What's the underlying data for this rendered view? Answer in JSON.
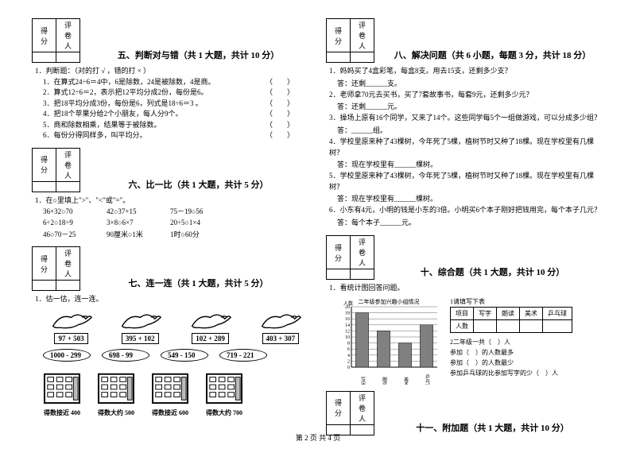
{
  "sections": {
    "five": {
      "title": "五、判断对与错（共 1 大题，共计 10 分）"
    },
    "six": {
      "title": "六、比一比（共 1 大题，共计 5 分）"
    },
    "seven": {
      "title": "七、连一连（共 1 大题，共计 5 分）"
    },
    "eight": {
      "title": "八、解决问题（共 6 小题，每题 3 分，共计 18 分）"
    },
    "ten": {
      "title": "十、综合题（共 1 大题，共计 10 分）"
    },
    "eleven": {
      "title": "十一、附加题（共 1 大题，共计 10 分）"
    }
  },
  "score_labels": {
    "score": "得分",
    "reviewer": "评卷人"
  },
  "q5": {
    "stem": "1．判断题：（对的打 √ ，错的打 × ）",
    "items": [
      "1．在算式24÷6＝4中，6是除数，24是被除数，4是商。",
      "2．算式12÷6＝2，表示把12平均分成2份，每份是6。",
      "3．把18平均分成3份，每份是6，列式是18÷6＝3 。",
      "4．把18个苹果分给2个小朋友，每人分9个。",
      "5．商和除数相乘，结果等于被除数。",
      "6．每份分得同样多，叫平均分。"
    ],
    "paren": "（　　）"
  },
  "q6": {
    "stem": "1．在○里填上\">\"、\"<\"或\"=\"。",
    "rows": [
      [
        "36+32○70",
        "42○37+15",
        "75－19○56"
      ],
      [
        "6÷2○18÷9",
        "3×8○6×7",
        "20÷5○1×4"
      ],
      [
        "46○70－25",
        "90厘米○1米",
        "1时○60分"
      ]
    ]
  },
  "q7": {
    "stem": "1．估一估，连一连。",
    "doves": [
      "97 + 503",
      "395 + 102",
      "102 + 289",
      "403 + 307"
    ],
    "ovals": [
      "1000 - 299",
      "698 - 99",
      "549 - 150",
      "719 - 221"
    ],
    "buildings": [
      "得数接近 400",
      "得数大约 500",
      "得数接近 600",
      "得数大约 700"
    ]
  },
  "q8": {
    "items": [
      {
        "q": "1．妈妈买了4盒彩笔，每盒8支。用去15支，还剩多少支？",
        "a": "答：还剩______支。"
      },
      {
        "q": "2．老师拿70元去买书，买了7套故事书，每套9元，还剩多少元？",
        "a": "答：还剩______元。"
      },
      {
        "q": "3．操场上原有16个同学，又来了14个。这些同学每5个一组做游戏，可以分成多少组？",
        "a": "答：______组。"
      },
      {
        "q": "4．学校里原来种了43棵树，今年死了5棵，植树节时又种了18棵。现在学校里有几棵树？",
        "a": "答：现在学校里有______棵树。"
      },
      {
        "q": "5．学校里原来种了43棵树，今年死了5棵，植树节时又种了18棵。现在学校里有几棵树？",
        "a": "答：现在学校里有______棵树。"
      },
      {
        "q": "6．小东有4元，小明的钱是小东的3倍。小明买6个本子刚好把钱用完，每个本子几元？",
        "a": "答：每个本子______元。"
      }
    ]
  },
  "q10": {
    "stem": "1．看统计图回答问题。",
    "chart_title": "二年级参加兴趣小组情况",
    "chart": {
      "ylabel": "人数",
      "ymax": 20,
      "ystep": 2,
      "categories": [
        "写字",
        "朗读",
        "美术",
        "乒乓球"
      ],
      "values": [
        18,
        12,
        8,
        14
      ],
      "bar_color": "#808080",
      "bg": "#ffffff",
      "grid_color": "#000000"
    },
    "survey": {
      "header": "1请填写下表",
      "cols": [
        "项目",
        "写字",
        "朗读",
        "美术",
        "乒乓球"
      ],
      "row_label": "人数",
      "lines": [
        "2二年级一共（　）人",
        "参加（　）的人数最多",
        "参加（　）的人数最少",
        "参加乒乓球的比参加写字的少（　）人"
      ]
    }
  },
  "footer": "第 2 页 共 4 页"
}
